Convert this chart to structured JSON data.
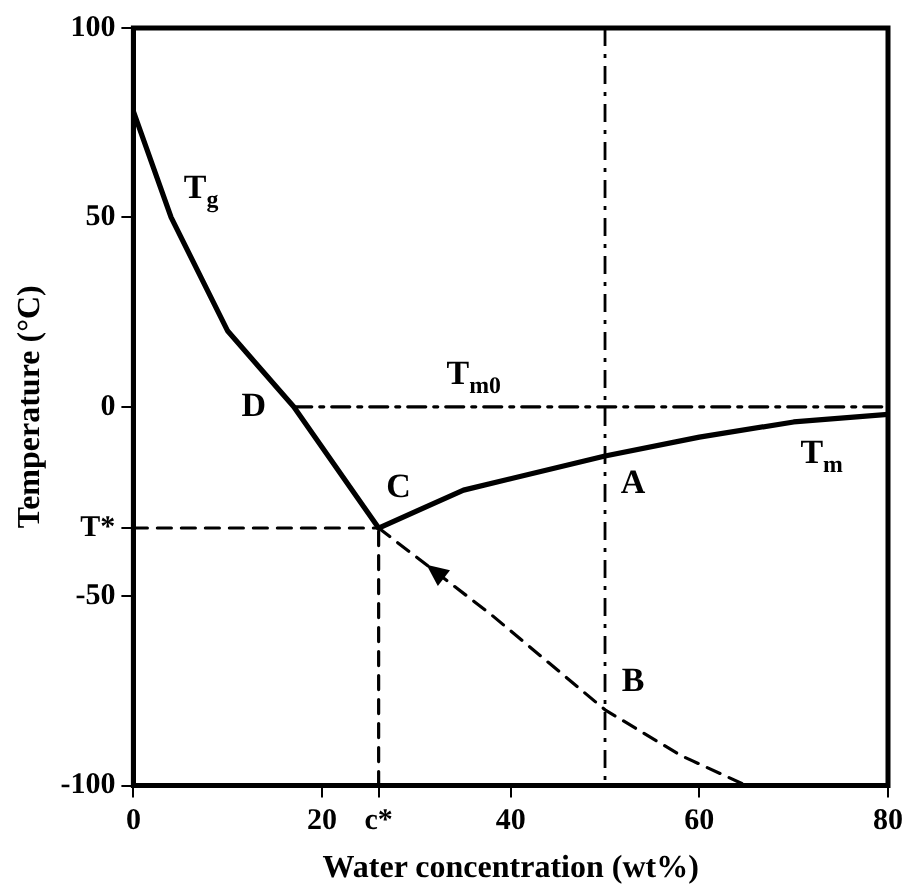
{
  "chart_data": {
    "type": "line",
    "xlabel": "Water concentration (wt%)",
    "ylabel": "Temperature (°C)",
    "xlim": [
      0,
      80
    ],
    "xticks": [
      0,
      20,
      {
        "value": 26,
        "label": "c*"
      },
      40,
      60,
      80
    ],
    "ylim": [
      -100,
      100
    ],
    "yticks": [
      -100,
      -50,
      {
        "value": -32,
        "label": "T*"
      },
      0,
      50,
      100
    ],
    "grid": false,
    "legend": false,
    "marker": "none",
    "series": [
      {
        "type": "line",
        "name": "T$_{g}$",
        "color": "#000000",
        "line_style": "solid",
        "x": [
          0,
          4,
          10,
          17,
          26
        ],
        "values": [
          78,
          50,
          20,
          0,
          -32
        ]
      },
      {
        "type": "line",
        "color": "#000000",
        "line_style": "dashed",
        "x": [
          26,
          38,
          50,
          58,
          65
        ],
        "values": [
          -32,
          -55,
          -80,
          -92,
          -100
        ]
      },
      {
        "type": "line",
        "name": "T$_{m}$",
        "color": "#000000",
        "line_style": "solid",
        "x": [
          26,
          35,
          50,
          60,
          70,
          80
        ],
        "values": [
          -32,
          -22,
          -13,
          -8,
          -4,
          -2
        ]
      },
      {
        "type": "line",
        "name": "T$_{m0}$",
        "color": "#000000",
        "line_style": "dashdot",
        "x": [
          17,
          80
        ],
        "values": [
          0,
          0
        ]
      },
      {
        "type": "line",
        "color": "#000000",
        "line_style": "dashed",
        "x": [
          0,
          26
        ],
        "values": [
          -32,
          -32
        ]
      },
      {
        "type": "line",
        "color": "#000000",
        "line_style": "dashed",
        "x": [
          26,
          26
        ],
        "values": [
          -100,
          -32
        ]
      }
    ],
    "ref_lines": [
      {
        "axis": "x",
        "value": 50,
        "color": "#000000",
        "line_style": "dashdot"
      }
    ],
    "annotations": [
      {
        "text": "D",
        "x": 17,
        "y": 0
      },
      {
        "text": "C",
        "x": 26,
        "y": -32
      },
      {
        "text": "A",
        "x": 50,
        "y": -13
      },
      {
        "text": "B",
        "x": 50,
        "y": -80
      }
    ]
  }
}
